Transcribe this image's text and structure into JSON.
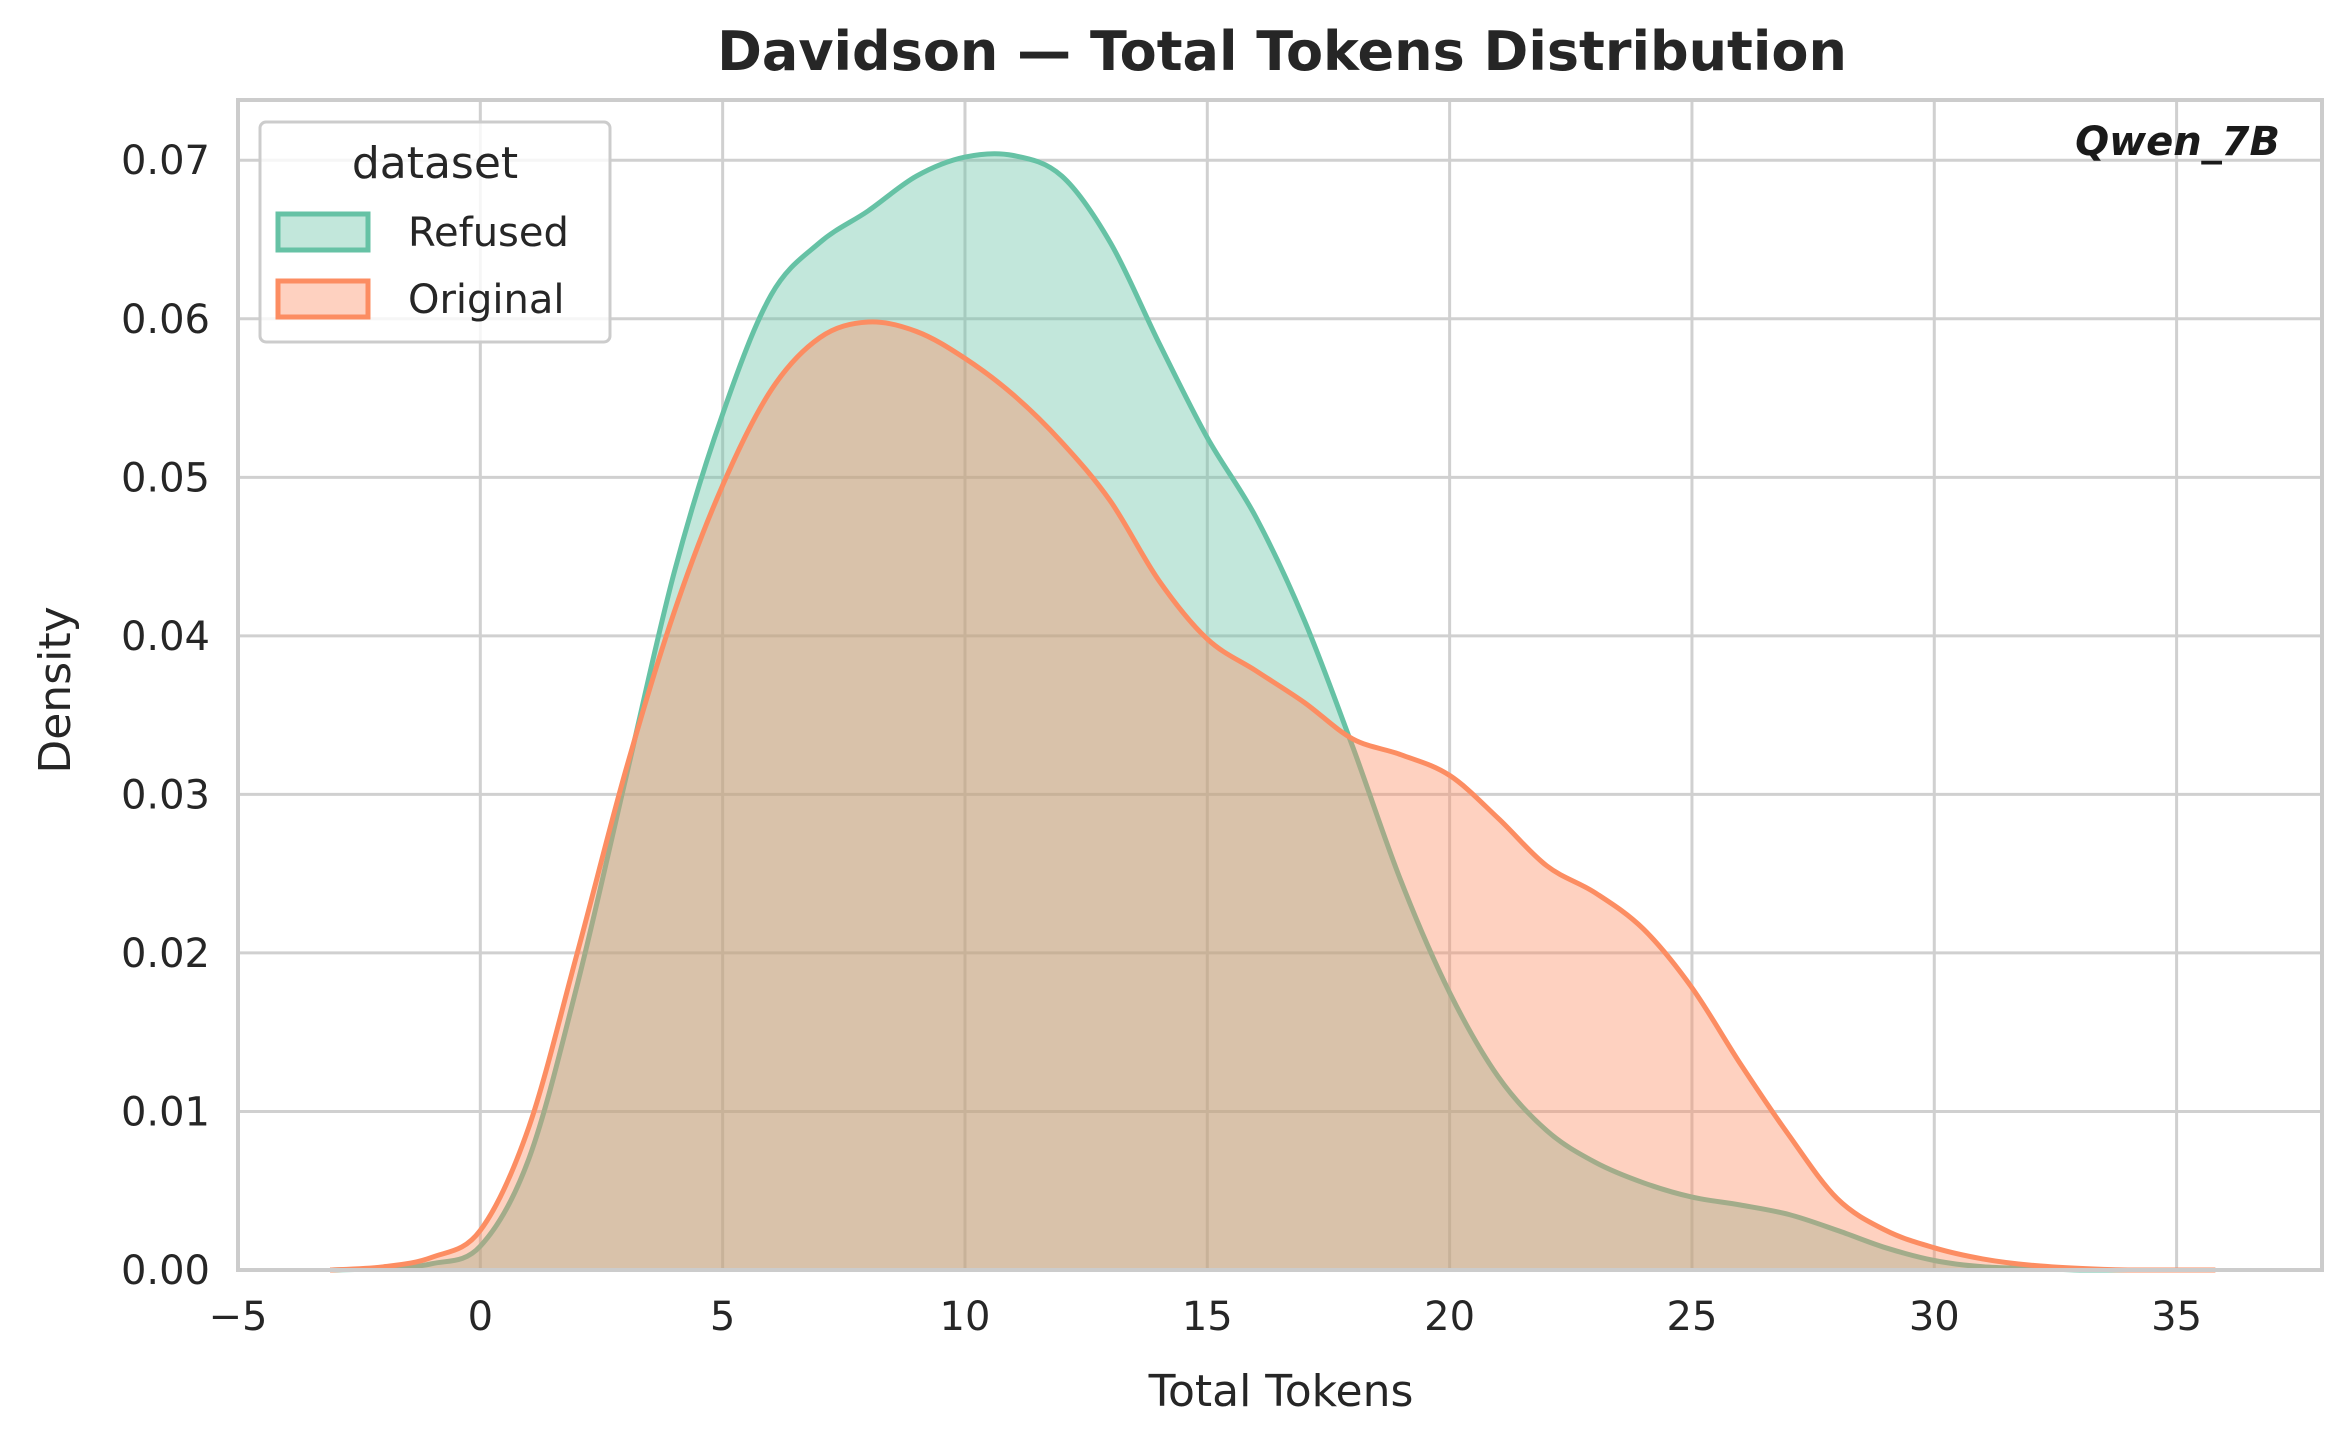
{
  "chart_data": {
    "type": "area",
    "title": "Davidson — Total Tokens Distribution",
    "xlabel": "Total Tokens",
    "ylabel": "Density",
    "xlim": [
      -5,
      38
    ],
    "ylim": [
      0,
      0.0738
    ],
    "xticks": [
      -5,
      0,
      5,
      10,
      15,
      20,
      25,
      30,
      35
    ],
    "xtick_labels": [
      "−5",
      "0",
      "5",
      "10",
      "15",
      "20",
      "25",
      "30",
      "35"
    ],
    "yticks": [
      0,
      0.01,
      0.02,
      0.03,
      0.04,
      0.05,
      0.06,
      0.07
    ],
    "ytick_labels": [
      "0.00",
      "0.01",
      "0.02",
      "0.03",
      "0.04",
      "0.05",
      "0.06",
      "0.07"
    ],
    "grid": true,
    "legend": {
      "title": "dataset",
      "placement": "top-left"
    },
    "annotation": "Qwen_7B",
    "annotation_placement": "top-right",
    "series": [
      {
        "name": "Refused",
        "color": "#66c2a5",
        "fill_color": "#66c2a5",
        "fill_opacity": 0.4,
        "x": [
          -3.1,
          -2,
          -1,
          0,
          1,
          2,
          3,
          4,
          5,
          6,
          7,
          8,
          9,
          10,
          11,
          12,
          13,
          14,
          15,
          16,
          17,
          18,
          19,
          20,
          21,
          22,
          23,
          24,
          25,
          26,
          27,
          28,
          29,
          30,
          31,
          32,
          33,
          34
        ],
        "y": [
          0.0,
          0.0001,
          0.0004,
          0.0015,
          0.007,
          0.018,
          0.031,
          0.044,
          0.054,
          0.0615,
          0.0648,
          0.0668,
          0.069,
          0.0702,
          0.0703,
          0.069,
          0.0648,
          0.0585,
          0.0525,
          0.0475,
          0.041,
          0.033,
          0.0245,
          0.0175,
          0.0122,
          0.0088,
          0.0068,
          0.0055,
          0.0046,
          0.0041,
          0.0035,
          0.0025,
          0.0014,
          0.0006,
          0.0002,
          0.0001,
          0.0,
          0.0
        ]
      },
      {
        "name": "Original",
        "color": "#fc8d62",
        "fill_color": "#fc8d62",
        "fill_opacity": 0.4,
        "x": [
          -3.1,
          -2,
          -1,
          0,
          1,
          2,
          3,
          4,
          5,
          6,
          7,
          8,
          9,
          10,
          11,
          12,
          13,
          14,
          15,
          16,
          17,
          18,
          19,
          20,
          21,
          22,
          23,
          24,
          25,
          26,
          27,
          28,
          29,
          30,
          31,
          32,
          33,
          34,
          35,
          35.8
        ],
        "y": [
          0.0,
          0.0002,
          0.0008,
          0.0025,
          0.009,
          0.02,
          0.0315,
          0.0415,
          0.0495,
          0.0555,
          0.0588,
          0.0598,
          0.0592,
          0.0575,
          0.0552,
          0.0522,
          0.0485,
          0.0435,
          0.0398,
          0.0378,
          0.0358,
          0.0335,
          0.0325,
          0.0312,
          0.0285,
          0.0255,
          0.0238,
          0.0215,
          0.0178,
          0.013,
          0.0085,
          0.0045,
          0.0025,
          0.0014,
          0.0007,
          0.0003,
          0.0001,
          0.0,
          0.0,
          0.0
        ]
      }
    ]
  }
}
